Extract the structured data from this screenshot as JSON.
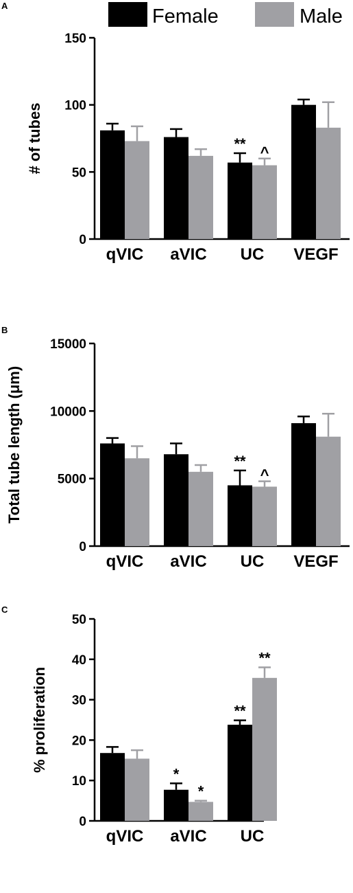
{
  "legend": {
    "items": [
      {
        "label": "Female",
        "color": "#000000"
      },
      {
        "label": "Male",
        "color": "#a0a0a4"
      }
    ]
  },
  "chart_data": [
    {
      "panel": "A",
      "type": "bar",
      "ylabel": "# of tubes",
      "ylim": [
        0,
        150
      ],
      "yticks": [
        "0",
        "50",
        "100",
        "150"
      ],
      "categories": [
        "qVIC",
        "aVIC",
        "UC",
        "VEGF"
      ],
      "series": [
        {
          "name": "Female",
          "values": [
            81,
            76,
            57,
            100
          ],
          "errors": [
            5,
            6,
            7,
            4
          ],
          "annotations": [
            "",
            "",
            "**",
            ""
          ]
        },
        {
          "name": "Male",
          "values": [
            73,
            62,
            55,
            83
          ],
          "errors": [
            11,
            5,
            5,
            19
          ],
          "annotations": [
            "",
            "",
            "^",
            ""
          ]
        }
      ]
    },
    {
      "panel": "B",
      "type": "bar",
      "ylabel": "Total tube length (μm)",
      "ylim": [
        0,
        15000
      ],
      "yticks": [
        "0",
        "5000",
        "10000",
        "15000"
      ],
      "categories": [
        "qVIC",
        "aVIC",
        "UC",
        "VEGF"
      ],
      "series": [
        {
          "name": "Female",
          "values": [
            7600,
            6800,
            4500,
            9100
          ],
          "errors": [
            400,
            800,
            1100,
            500
          ],
          "annotations": [
            "",
            "",
            "**",
            ""
          ]
        },
        {
          "name": "Male",
          "values": [
            6500,
            5500,
            4400,
            8100
          ],
          "errors": [
            900,
            500,
            400,
            1700
          ],
          "annotations": [
            "",
            "",
            "^",
            ""
          ]
        }
      ]
    },
    {
      "panel": "C",
      "type": "bar",
      "ylabel": "% proliferation",
      "ylim": [
        0,
        50
      ],
      "yticks": [
        "0",
        "10",
        "20",
        "30",
        "40",
        "50"
      ],
      "categories": [
        "qVIC",
        "aVIC",
        "UC"
      ],
      "series": [
        {
          "name": "Female",
          "values": [
            16.8,
            7.7,
            23.8
          ],
          "errors": [
            1.5,
            1.6,
            1.1
          ],
          "annotations": [
            "",
            "*",
            "**"
          ]
        },
        {
          "name": "Male",
          "values": [
            15.4,
            4.7,
            35.4
          ],
          "errors": [
            2.1,
            0.3,
            2.6
          ],
          "annotations": [
            "",
            "*",
            "**"
          ]
        }
      ]
    }
  ]
}
